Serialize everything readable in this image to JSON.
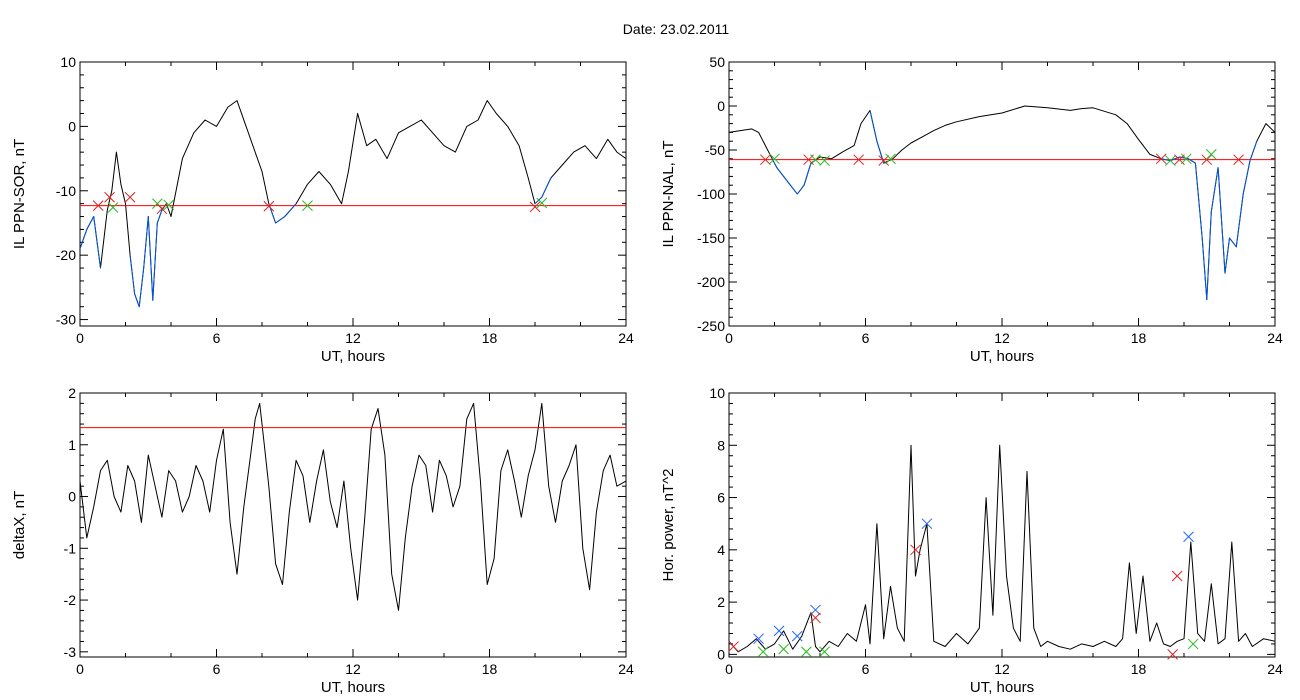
{
  "figure": {
    "title": "Date:  23.02.2011"
  },
  "colors": {
    "trace": "#000000",
    "threshold": "#ff0000",
    "active": "#0055dd",
    "marker_red": "#dd2222",
    "marker_green": "#22bb22",
    "marker_blue": "#2266ff"
  },
  "chart_data": [
    {
      "id": "il-sor",
      "type": "line",
      "title": "",
      "xlabel": "UT, hours",
      "ylabel": "IL PPN-SOR, nT",
      "xlim": [
        0,
        24
      ],
      "ylim": [
        -31,
        10
      ],
      "xticks": [
        0,
        6,
        12,
        18,
        24
      ],
      "yticks": [
        -30,
        -20,
        -10,
        0,
        10
      ],
      "threshold": -12.3,
      "x": [
        0,
        0.3,
        0.6,
        0.9,
        1.2,
        1.4,
        1.6,
        1.8,
        2.0,
        2.2,
        2.4,
        2.6,
        2.8,
        3.0,
        3.2,
        3.4,
        3.6,
        3.8,
        4.0,
        4.5,
        5.0,
        5.5,
        6.0,
        6.5,
        6.9,
        7.3,
        7.6,
        8.0,
        8.3,
        8.6,
        9.0,
        9.5,
        10.0,
        10.5,
        11.0,
        11.5,
        11.8,
        12.2,
        12.6,
        13.0,
        13.5,
        14.0,
        14.5,
        15.0,
        15.5,
        16.0,
        16.5,
        17.0,
        17.5,
        17.9,
        18.3,
        18.8,
        19.3,
        19.7,
        20.0,
        20.3,
        20.7,
        21.2,
        21.7,
        22.2,
        22.7,
        23.2,
        23.6,
        24.0
      ],
      "y": [
        -19,
        -16,
        -14,
        -22,
        -13,
        -10,
        -4,
        -9,
        -12,
        -20,
        -26,
        -28,
        -22,
        -14,
        -27,
        -15,
        -13,
        -12,
        -14,
        -5,
        -1,
        1,
        0,
        3,
        4,
        0,
        -3,
        -7,
        -12,
        -15,
        -14,
        -12,
        -9,
        -7,
        -9,
        -12,
        -7,
        2,
        -3,
        -2,
        -5,
        -1,
        0,
        1,
        -1,
        -3,
        -4,
        0,
        1,
        4,
        2,
        0,
        -3,
        -8,
        -12,
        -11,
        -8,
        -6,
        -4,
        -3,
        -5,
        -2,
        -4,
        -5
      ],
      "active_segments": [
        [
          0,
          3
        ],
        [
          9,
          17
        ],
        [
          28,
          31
        ],
        [
          54,
          56
        ]
      ],
      "markers": [
        {
          "x": 0.8,
          "y": -12.3,
          "color": "red"
        },
        {
          "x": 1.3,
          "y": -11.0,
          "color": "red"
        },
        {
          "x": 1.45,
          "y": -12.6,
          "color": "green"
        },
        {
          "x": 2.2,
          "y": -11.0,
          "color": "red"
        },
        {
          "x": 3.4,
          "y": -12.0,
          "color": "green"
        },
        {
          "x": 3.6,
          "y": -12.8,
          "color": "red"
        },
        {
          "x": 3.9,
          "y": -12.2,
          "color": "green"
        },
        {
          "x": 8.3,
          "y": -12.4,
          "color": "red"
        },
        {
          "x": 10.0,
          "y": -12.3,
          "color": "green"
        },
        {
          "x": 20.0,
          "y": -12.5,
          "color": "red"
        },
        {
          "x": 20.3,
          "y": -11.9,
          "color": "green"
        }
      ]
    },
    {
      "id": "il-nal",
      "type": "line",
      "title": "",
      "xlabel": "UT, hours",
      "ylabel": "IL PPN-NAL, nT",
      "xlim": [
        0,
        24
      ],
      "ylim": [
        -250,
        50
      ],
      "xticks": [
        0,
        6,
        12,
        18,
        24
      ],
      "yticks": [
        -250,
        -200,
        -150,
        -100,
        -50,
        0,
        50
      ],
      "threshold": -61,
      "x": [
        0,
        0.5,
        1.0,
        1.3,
        1.6,
        1.9,
        2.1,
        2.4,
        2.7,
        3.0,
        3.3,
        3.6,
        4.0,
        4.5,
        5.0,
        5.5,
        5.8,
        6.2,
        6.5,
        6.8,
        7.2,
        7.6,
        8.0,
        8.5,
        9.0,
        9.5,
        10.0,
        11.0,
        12.0,
        13.0,
        14.0,
        15.0,
        15.5,
        16.0,
        17.0,
        17.5,
        18.0,
        18.5,
        19.0,
        19.4,
        19.8,
        20.2,
        20.5,
        20.8,
        21.0,
        21.2,
        21.5,
        21.8,
        22.0,
        22.3,
        22.6,
        22.9,
        23.2,
        23.6,
        24.0
      ],
      "y": [
        -30,
        -28,
        -26,
        -30,
        -45,
        -60,
        -70,
        -80,
        -90,
        -100,
        -90,
        -65,
        -58,
        -60,
        -52,
        -45,
        -20,
        -5,
        -40,
        -65,
        -60,
        -50,
        -42,
        -35,
        -28,
        -22,
        -18,
        -12,
        -8,
        0,
        -2,
        -5,
        -3,
        -2,
        -10,
        -20,
        -38,
        -55,
        -60,
        -62,
        -58,
        -60,
        -65,
        -150,
        -220,
        -120,
        -70,
        -190,
        -150,
        -160,
        -100,
        -62,
        -40,
        -20,
        -30
      ],
      "active_segments": [
        [
          5,
          11
        ],
        [
          17,
          19
        ],
        [
          38,
          52
        ]
      ],
      "markers": [
        {
          "x": 1.6,
          "y": -61,
          "color": "red"
        },
        {
          "x": 2.0,
          "y": -60,
          "color": "green"
        },
        {
          "x": 3.5,
          "y": -61,
          "color": "red"
        },
        {
          "x": 3.8,
          "y": -61,
          "color": "green"
        },
        {
          "x": 4.2,
          "y": -62,
          "color": "green"
        },
        {
          "x": 5.7,
          "y": -61,
          "color": "red"
        },
        {
          "x": 6.8,
          "y": -62,
          "color": "red"
        },
        {
          "x": 7.1,
          "y": -60,
          "color": "green"
        },
        {
          "x": 19.0,
          "y": -60,
          "color": "red"
        },
        {
          "x": 19.4,
          "y": -62,
          "color": "green"
        },
        {
          "x": 19.8,
          "y": -61,
          "color": "red"
        },
        {
          "x": 20.1,
          "y": -60,
          "color": "green"
        },
        {
          "x": 21.0,
          "y": -61,
          "color": "red"
        },
        {
          "x": 21.2,
          "y": -55,
          "color": "green"
        },
        {
          "x": 22.4,
          "y": -61,
          "color": "red"
        }
      ]
    },
    {
      "id": "deltax",
      "type": "line",
      "title": "",
      "xlabel": "UT, hours",
      "ylabel": "deltaX, nT",
      "xlim": [
        0,
        24
      ],
      "ylim": [
        -3.1,
        2
      ],
      "xticks": [
        0,
        6,
        12,
        18,
        24
      ],
      "yticks": [
        -3,
        -2,
        -1,
        0,
        1,
        2
      ],
      "threshold": 1.33,
      "x": [
        0,
        0.3,
        0.6,
        0.9,
        1.2,
        1.5,
        1.8,
        2.1,
        2.4,
        2.7,
        3.0,
        3.3,
        3.6,
        3.9,
        4.2,
        4.5,
        4.8,
        5.1,
        5.4,
        5.7,
        6.0,
        6.3,
        6.6,
        6.9,
        7.2,
        7.5,
        7.7,
        7.9,
        8.1,
        8.3,
        8.6,
        8.9,
        9.2,
        9.5,
        9.8,
        10.1,
        10.4,
        10.7,
        11.0,
        11.3,
        11.6,
        11.9,
        12.2,
        12.5,
        12.8,
        13.1,
        13.4,
        13.7,
        14.0,
        14.3,
        14.6,
        14.9,
        15.2,
        15.5,
        15.8,
        16.1,
        16.4,
        16.7,
        17.0,
        17.3,
        17.6,
        17.9,
        18.2,
        18.5,
        18.8,
        19.1,
        19.4,
        19.7,
        20.0,
        20.3,
        20.6,
        20.9,
        21.2,
        21.5,
        21.8,
        22.1,
        22.4,
        22.7,
        23.0,
        23.3,
        23.6,
        24.0
      ],
      "y": [
        0.3,
        -0.8,
        -0.2,
        0.5,
        0.7,
        0.0,
        -0.3,
        0.6,
        0.3,
        -0.5,
        0.8,
        0.2,
        -0.4,
        0.5,
        0.3,
        -0.3,
        0.0,
        0.6,
        0.3,
        -0.3,
        0.7,
        1.3,
        -0.5,
        -1.5,
        -0.2,
        0.8,
        1.5,
        1.8,
        1.0,
        0.2,
        -1.3,
        -1.7,
        -0.3,
        0.7,
        0.4,
        -0.5,
        0.3,
        0.9,
        -0.1,
        -0.6,
        0.3,
        -1.0,
        -2.0,
        -0.5,
        1.3,
        1.7,
        0.8,
        -1.5,
        -2.2,
        -0.8,
        0.2,
        0.8,
        0.6,
        -0.3,
        0.7,
        0.4,
        -0.2,
        0.2,
        1.5,
        1.8,
        0.3,
        -1.7,
        -1.2,
        0.5,
        0.9,
        0.3,
        -0.4,
        0.4,
        0.9,
        1.8,
        0.2,
        -0.5,
        0.3,
        0.6,
        1.0,
        -1.0,
        -1.8,
        -0.3,
        0.5,
        0.8,
        0.2,
        0.3
      ],
      "active_segments": [],
      "markers": []
    },
    {
      "id": "hor-power",
      "type": "line",
      "title": "",
      "xlabel": "UT, hours",
      "ylabel": "Hor. power, nT^2",
      "xlim": [
        0,
        24
      ],
      "ylim": [
        -0.1,
        10
      ],
      "xticks": [
        0,
        6,
        12,
        18,
        24
      ],
      "yticks": [
        0,
        2,
        4,
        6,
        8,
        10
      ],
      "threshold": null,
      "x": [
        0,
        0.4,
        0.8,
        1.2,
        1.6,
        2.0,
        2.4,
        2.8,
        3.2,
        3.6,
        3.8,
        4.0,
        4.4,
        4.8,
        5.2,
        5.6,
        6.0,
        6.2,
        6.5,
        6.8,
        7.1,
        7.4,
        7.7,
        8.0,
        8.2,
        8.4,
        8.7,
        9.0,
        9.5,
        10.0,
        10.5,
        11.0,
        11.3,
        11.6,
        11.9,
        12.2,
        12.5,
        12.8,
        13.1,
        13.4,
        13.7,
        14.0,
        14.5,
        15.0,
        15.5,
        16.0,
        16.5,
        17.0,
        17.3,
        17.6,
        17.9,
        18.2,
        18.5,
        18.8,
        19.1,
        19.4,
        19.7,
        20.0,
        20.3,
        20.6,
        20.9,
        21.2,
        21.5,
        21.8,
        22.1,
        22.4,
        22.7,
        23.0,
        23.5,
        24.0
      ],
      "y": [
        0.5,
        0.1,
        0.3,
        0.6,
        0.2,
        0.4,
        0.9,
        0.2,
        0.7,
        1.6,
        0.3,
        0.1,
        0.5,
        0.3,
        0.8,
        0.5,
        1.9,
        0.4,
        5.0,
        0.6,
        2.6,
        1.0,
        0.5,
        8.0,
        3.0,
        4.0,
        5.0,
        0.5,
        0.3,
        0.8,
        0.4,
        1.0,
        6.0,
        1.5,
        8.0,
        3.0,
        1.0,
        0.5,
        7.0,
        1.0,
        0.3,
        0.5,
        0.3,
        0.2,
        0.4,
        0.3,
        0.5,
        0.3,
        0.6,
        3.5,
        0.8,
        3.0,
        0.5,
        1.2,
        0.4,
        0.3,
        0.5,
        0.6,
        4.3,
        0.8,
        0.5,
        2.7,
        0.4,
        0.6,
        4.3,
        0.5,
        0.8,
        0.3,
        0.6,
        0.5
      ],
      "active_segments": [],
      "markers": [
        {
          "x": 0.2,
          "y": 0.3,
          "color": "red"
        },
        {
          "x": 1.3,
          "y": 0.6,
          "color": "blue"
        },
        {
          "x": 1.5,
          "y": 0.1,
          "color": "green"
        },
        {
          "x": 2.2,
          "y": 0.9,
          "color": "blue"
        },
        {
          "x": 2.4,
          "y": 0.2,
          "color": "green"
        },
        {
          "x": 3.0,
          "y": 0.7,
          "color": "blue"
        },
        {
          "x": 3.4,
          "y": 0.1,
          "color": "green"
        },
        {
          "x": 3.8,
          "y": 1.7,
          "color": "blue"
        },
        {
          "x": 3.8,
          "y": 1.4,
          "color": "red"
        },
        {
          "x": 4.2,
          "y": 0.1,
          "color": "green"
        },
        {
          "x": 8.2,
          "y": 4.0,
          "color": "red"
        },
        {
          "x": 8.7,
          "y": 5.0,
          "color": "blue"
        },
        {
          "x": 19.7,
          "y": 3.0,
          "color": "red"
        },
        {
          "x": 19.5,
          "y": 0.0,
          "color": "red"
        },
        {
          "x": 20.2,
          "y": 4.5,
          "color": "blue"
        },
        {
          "x": 20.4,
          "y": 0.4,
          "color": "green"
        }
      ]
    }
  ]
}
